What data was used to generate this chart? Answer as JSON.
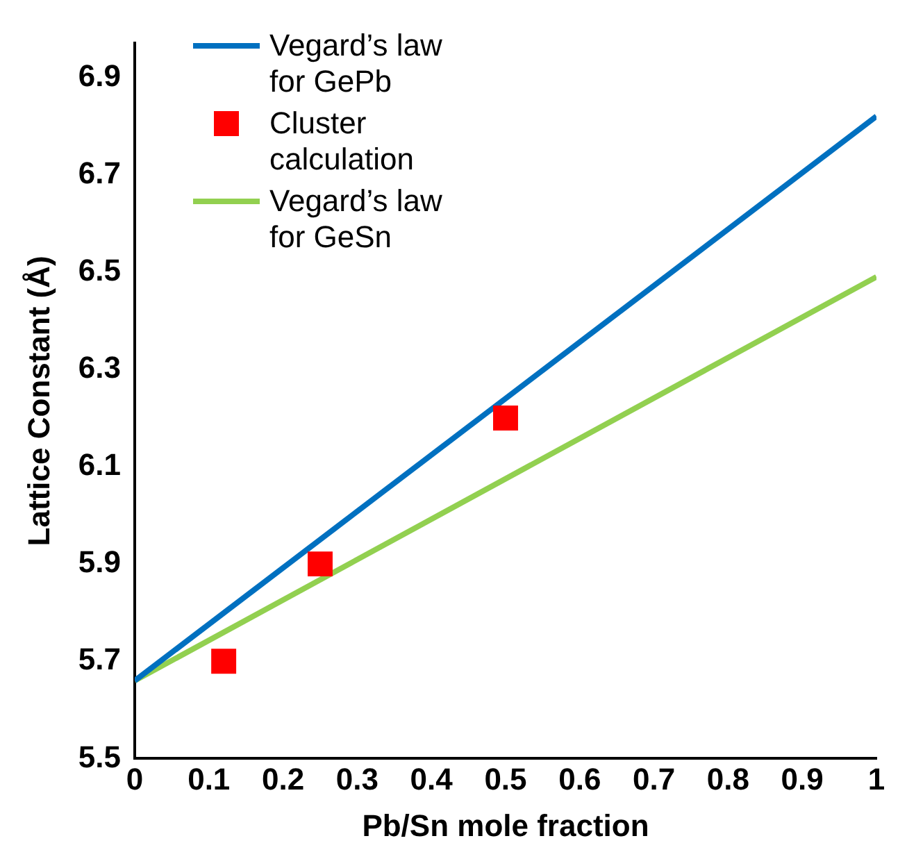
{
  "chart_data": {
    "type": "line",
    "xlabel": "Pb/Sn mole fraction",
    "ylabel": "Lattice Constant (Å)",
    "xlim": [
      0,
      1
    ],
    "xticks": [
      0,
      0.1,
      0.2,
      0.3,
      0.4,
      0.5,
      0.6,
      0.7,
      0.8,
      0.9,
      1
    ],
    "ylim": [
      5.5,
      6.97
    ],
    "yticks": [
      5.5,
      5.7,
      5.9,
      6.1,
      6.3,
      6.5,
      6.7,
      6.9
    ],
    "grid": false,
    "legend": "top left",
    "series": [
      {
        "name": "Vegard’s law for GePb",
        "type": "line",
        "color": "#0070c0",
        "x": [
          0,
          1
        ],
        "values": [
          5.66,
          6.82
        ],
        "marker": "none"
      },
      {
        "name": "Cluster calculation",
        "type": "scatter",
        "color": "#ff0000",
        "x": [
          0.12,
          0.25,
          0.5
        ],
        "values": [
          5.7,
          5.9,
          6.2
        ],
        "marker": "square"
      },
      {
        "name": "Vegard’s law for GeSn",
        "type": "line",
        "color": "#92d050",
        "x": [
          0,
          1
        ],
        "values": [
          5.66,
          6.49
        ],
        "marker": "none"
      }
    ]
  }
}
